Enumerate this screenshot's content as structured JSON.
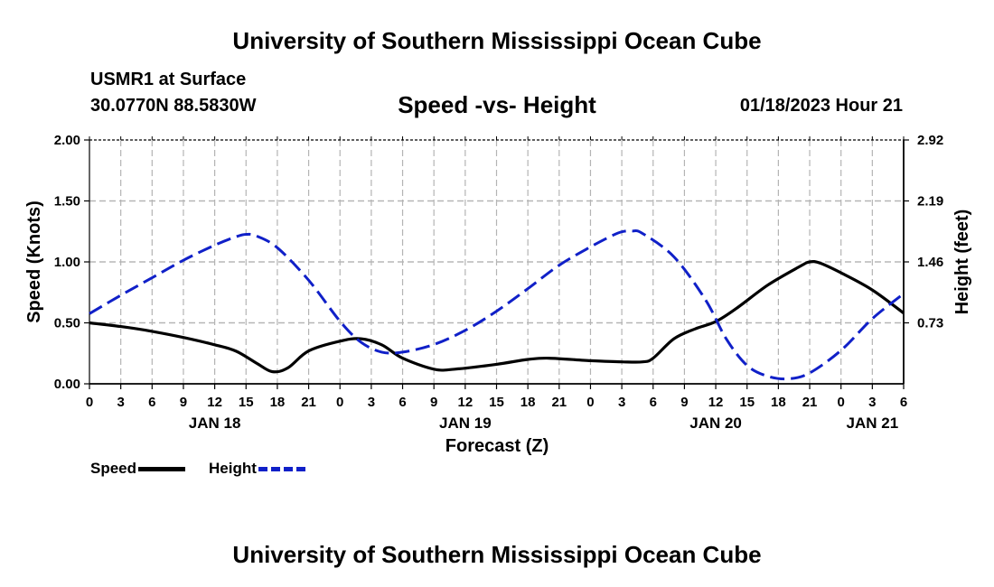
{
  "page": {
    "title_top": "University of Southern Mississippi Ocean Cube",
    "title_bottom": "University of Southern Mississippi Ocean Cube",
    "station": "USMR1 at Surface",
    "coords": "30.0770N  88.5830W",
    "run_time": "01/18/2023 Hour 21"
  },
  "legend": {
    "speed": "Speed",
    "height": "Height"
  },
  "chart_data": {
    "type": "line",
    "title": "Speed -vs- Height",
    "xlabel": "Forecast (Z)",
    "ylabel": "Speed (Knots)",
    "y2label": "Height (feet)",
    "x_hours": [
      0,
      3,
      6,
      9,
      12,
      15,
      18,
      21,
      24,
      27,
      30,
      33,
      36,
      39,
      42,
      45,
      48,
      51,
      54,
      57,
      60,
      63,
      66,
      69,
      72,
      75,
      78
    ],
    "x_tick_labels": [
      "0",
      "3",
      "6",
      "9",
      "12",
      "15",
      "18",
      "21",
      "0",
      "3",
      "6",
      "9",
      "12",
      "15",
      "18",
      "21",
      "0",
      "3",
      "6",
      "9",
      "12",
      "15",
      "18",
      "21",
      "0",
      "3",
      "6"
    ],
    "date_labels": [
      {
        "label": "JAN 18",
        "hour": 12
      },
      {
        "label": "JAN 19",
        "hour": 36
      },
      {
        "label": "JAN 20",
        "hour": 60
      },
      {
        "label": "JAN 21",
        "hour": 75
      }
    ],
    "xlim": [
      0,
      78
    ],
    "ylim": [
      0,
      2.0
    ],
    "y_ticks": [
      "0.00",
      "0.50",
      "1.00",
      "1.50",
      "2.00"
    ],
    "y2lim": [
      0,
      2.92
    ],
    "y2_ticks": [
      "0.73",
      "1.46",
      "2.19",
      "2.92"
    ],
    "series": [
      {
        "name": "Speed",
        "axis": "left",
        "color": "#000000",
        "style": "solid",
        "points": [
          [
            0,
            0.5
          ],
          [
            3,
            0.47
          ],
          [
            6,
            0.43
          ],
          [
            9,
            0.38
          ],
          [
            12,
            0.32
          ],
          [
            14,
            0.27
          ],
          [
            16,
            0.17
          ],
          [
            17.5,
            0.1
          ],
          [
            19,
            0.13
          ],
          [
            21,
            0.27
          ],
          [
            24,
            0.35
          ],
          [
            26,
            0.37
          ],
          [
            28,
            0.32
          ],
          [
            30,
            0.21
          ],
          [
            33,
            0.12
          ],
          [
            35,
            0.12
          ],
          [
            39,
            0.16
          ],
          [
            42,
            0.2
          ],
          [
            44,
            0.21
          ],
          [
            48,
            0.19
          ],
          [
            51,
            0.18
          ],
          [
            53,
            0.18
          ],
          [
            54,
            0.21
          ],
          [
            56,
            0.37
          ],
          [
            58,
            0.45
          ],
          [
            60,
            0.51
          ],
          [
            62,
            0.62
          ],
          [
            65,
            0.81
          ],
          [
            68,
            0.96
          ],
          [
            69,
            1.0
          ],
          [
            70,
            0.99
          ],
          [
            72,
            0.91
          ],
          [
            75,
            0.77
          ],
          [
            78,
            0.58
          ]
        ]
      },
      {
        "name": "Height",
        "axis": "right",
        "color": "#1020c8",
        "style": "dashed",
        "points": [
          [
            0,
            0.84
          ],
          [
            3,
            1.06
          ],
          [
            6,
            1.27
          ],
          [
            9,
            1.48
          ],
          [
            12,
            1.66
          ],
          [
            14,
            1.76
          ],
          [
            15,
            1.79
          ],
          [
            16,
            1.77
          ],
          [
            18,
            1.63
          ],
          [
            21,
            1.24
          ],
          [
            24,
            0.75
          ],
          [
            26,
            0.5
          ],
          [
            28,
            0.38
          ],
          [
            30,
            0.38
          ],
          [
            33,
            0.47
          ],
          [
            36,
            0.64
          ],
          [
            39,
            0.87
          ],
          [
            42,
            1.14
          ],
          [
            45,
            1.42
          ],
          [
            48,
            1.64
          ],
          [
            50,
            1.77
          ],
          [
            51,
            1.82
          ],
          [
            52,
            1.83
          ],
          [
            53,
            1.8
          ],
          [
            56,
            1.52
          ],
          [
            59,
            1.01
          ],
          [
            61,
            0.54
          ],
          [
            63,
            0.22
          ],
          [
            65,
            0.09
          ],
          [
            67,
            0.06
          ],
          [
            69,
            0.13
          ],
          [
            72,
            0.4
          ],
          [
            75,
            0.78
          ],
          [
            78,
            1.08
          ]
        ]
      }
    ]
  }
}
